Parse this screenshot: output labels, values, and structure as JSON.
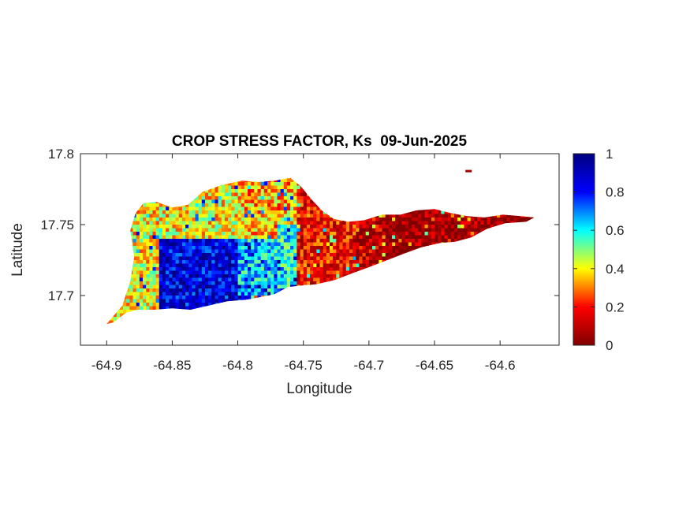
{
  "chart_data": {
    "type": "heatmap",
    "title": "CROP STRESS FACTOR, Ks  09-Jun-2025",
    "xlabel": "Longitude",
    "ylabel": "Latitude",
    "xlim": [
      -64.92,
      -64.555
    ],
    "ylim": [
      17.665,
      17.8
    ],
    "xticks": [
      -64.9,
      -64.85,
      -64.8,
      -64.75,
      -64.7,
      -64.65,
      -64.6
    ],
    "xtick_labels": [
      "-64.9",
      "-64.85",
      "-64.8",
      "-64.75",
      "-64.7",
      "-64.65",
      "-64.6"
    ],
    "yticks": [
      17.7,
      17.75,
      17.8
    ],
    "ytick_labels": [
      "17.7",
      "17.75",
      "17.8"
    ],
    "grid": false,
    "colormap": "jet",
    "colorbar": {
      "range": [
        0,
        1
      ],
      "ticks": [
        0,
        0.2,
        0.4,
        0.6,
        0.8,
        1
      ],
      "tick_labels": [
        "0",
        "0.2",
        "0.4",
        "0.6",
        "0.8",
        "1"
      ],
      "stops": [
        "#800000",
        "#ff0000",
        "#ffff00",
        "#00ffff",
        "#0000ff",
        "#000080"
      ]
    },
    "region_outline": [
      [
        -64.9,
        17.68
      ],
      [
        -64.888,
        17.693
      ],
      [
        -64.882,
        17.71
      ],
      [
        -64.879,
        17.727
      ],
      [
        -64.882,
        17.746
      ],
      [
        -64.878,
        17.758
      ],
      [
        -64.872,
        17.765
      ],
      [
        -64.862,
        17.766
      ],
      [
        -64.85,
        17.762
      ],
      [
        -64.838,
        17.764
      ],
      [
        -64.827,
        17.773
      ],
      [
        -64.812,
        17.778
      ],
      [
        -64.797,
        17.781
      ],
      [
        -64.784,
        17.78
      ],
      [
        -64.772,
        17.781
      ],
      [
        -64.76,
        17.783
      ],
      [
        -64.752,
        17.777
      ],
      [
        -64.744,
        17.768
      ],
      [
        -64.736,
        17.76
      ],
      [
        -64.727,
        17.754
      ],
      [
        -64.716,
        17.752
      ],
      [
        -64.704,
        17.753
      ],
      [
        -64.69,
        17.757
      ],
      [
        -64.676,
        17.757
      ],
      [
        -64.664,
        17.76
      ],
      [
        -64.65,
        17.761
      ],
      [
        -64.637,
        17.758
      ],
      [
        -64.625,
        17.756
      ],
      [
        -64.612,
        17.755
      ],
      [
        -64.598,
        17.757
      ],
      [
        -64.584,
        17.756
      ],
      [
        -64.574,
        17.755
      ],
      [
        -64.58,
        17.752
      ],
      [
        -64.596,
        17.751
      ],
      [
        -64.61,
        17.747
      ],
      [
        -64.622,
        17.741
      ],
      [
        -64.634,
        17.738
      ],
      [
        -64.646,
        17.737
      ],
      [
        -64.66,
        17.734
      ],
      [
        -64.672,
        17.73
      ],
      [
        -64.686,
        17.725
      ],
      [
        -64.7,
        17.72
      ],
      [
        -64.712,
        17.716
      ],
      [
        -64.726,
        17.711
      ],
      [
        -64.74,
        17.708
      ],
      [
        -64.752,
        17.707
      ],
      [
        -64.762,
        17.706
      ],
      [
        -64.772,
        17.701
      ],
      [
        -64.782,
        17.699
      ],
      [
        -64.794,
        17.697
      ],
      [
        -64.808,
        17.696
      ],
      [
        -64.822,
        17.693
      ],
      [
        -64.836,
        17.69
      ],
      [
        -64.85,
        17.691
      ],
      [
        -64.864,
        17.69
      ],
      [
        -64.876,
        17.69
      ],
      [
        -64.885,
        17.688
      ],
      [
        -64.895,
        17.681
      ]
    ],
    "zones": [
      {
        "lon": [
          -64.9,
          -64.82
        ],
        "lat": [
          17.68,
          17.77
        ],
        "ks": 0.4
      },
      {
        "lon": [
          -64.86,
          -64.79
        ],
        "lat": [
          17.69,
          17.74
        ],
        "ks": 0.85
      },
      {
        "lon": [
          -64.8,
          -64.77
        ],
        "lat": [
          17.7,
          17.75
        ],
        "ks": 0.65
      },
      {
        "lon": [
          -64.8,
          -64.76
        ],
        "lat": [
          17.74,
          17.785
        ],
        "ks": 0.35
      },
      {
        "lon": [
          -64.77,
          -64.75
        ],
        "lat": [
          17.7,
          17.75
        ],
        "ks": 0.6
      },
      {
        "lon": [
          -64.755,
          -64.71
        ],
        "lat": [
          17.7,
          17.785
        ],
        "ks": 0.18
      },
      {
        "lon": [
          -64.71,
          -64.69
        ],
        "lat": [
          17.71,
          17.76
        ],
        "ks": 0.1
      },
      {
        "lon": [
          -64.69,
          -64.57
        ],
        "lat": [
          17.72,
          17.762
        ],
        "ks": 0.04
      }
    ],
    "islet": {
      "lon": -64.624,
      "lat": 17.788,
      "ks": 0.05
    }
  }
}
